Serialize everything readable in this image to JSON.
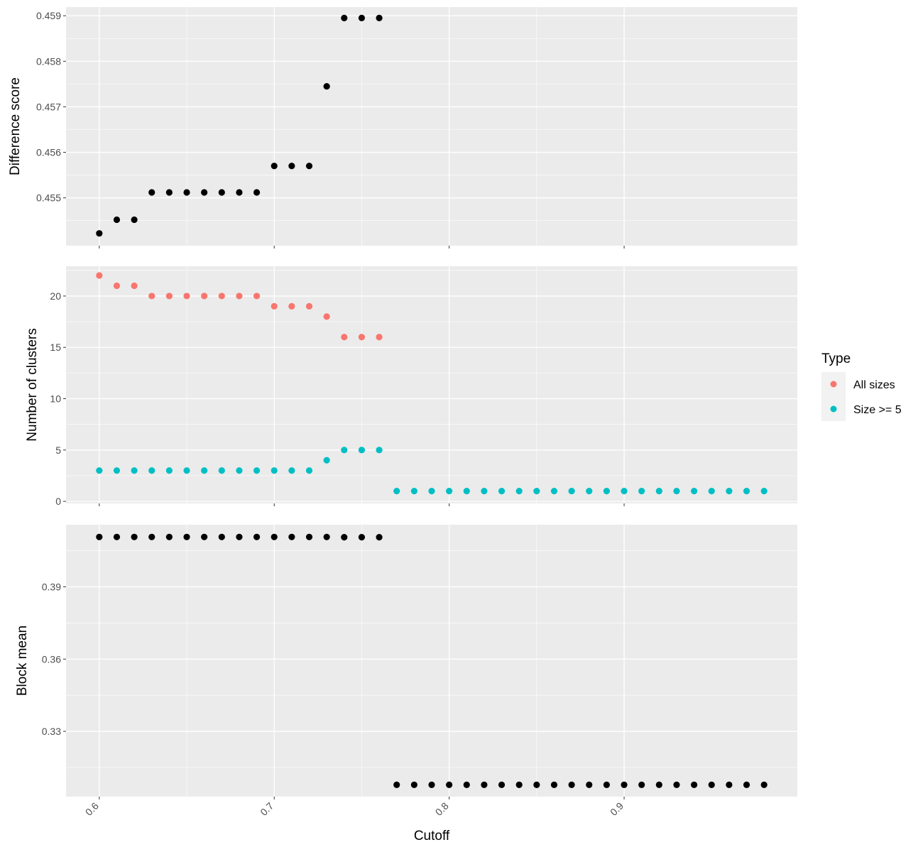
{
  "chart_data": [
    {
      "type": "scatter",
      "ylabel": "Difference score",
      "x": [
        0.6,
        0.61,
        0.62,
        0.63,
        0.64,
        0.65,
        0.66,
        0.67,
        0.68,
        0.69,
        0.7,
        0.71,
        0.72,
        0.73,
        0.74,
        0.75,
        0.76
      ],
      "y": [
        0.45422,
        0.45452,
        0.45452,
        0.45512,
        0.45512,
        0.45512,
        0.45512,
        0.45512,
        0.45512,
        0.45512,
        0.4557,
        0.4557,
        0.4557,
        0.45745,
        0.45895,
        0.45895,
        0.45895
      ],
      "xlim": [
        0.581,
        0.999
      ],
      "ylim": [
        0.45395,
        0.45919
      ],
      "yticks": [
        0.455,
        0.456,
        0.457,
        0.458,
        0.459
      ],
      "ytick_labels": [
        "0.455",
        "0.456",
        "0.457",
        "0.458",
        "0.459"
      ],
      "color": "#000000"
    },
    {
      "type": "scatter",
      "ylabel": "Number of clusters",
      "xlim": [
        0.581,
        0.999
      ],
      "ylim": [
        -0.2,
        22.9
      ],
      "yticks": [
        0,
        5,
        10,
        15,
        20
      ],
      "ytick_labels": [
        "0",
        "5",
        "10",
        "15",
        "20"
      ],
      "series": [
        {
          "name": "All sizes",
          "color": "#F8766D",
          "x": [
            0.6,
            0.61,
            0.62,
            0.63,
            0.64,
            0.65,
            0.66,
            0.67,
            0.68,
            0.69,
            0.7,
            0.71,
            0.72,
            0.73,
            0.74,
            0.75,
            0.76
          ],
          "y": [
            22,
            21,
            21,
            20,
            20,
            20,
            20,
            20,
            20,
            20,
            19,
            19,
            19,
            18,
            16,
            16,
            16
          ]
        },
        {
          "name": "Size >= 5",
          "color": "#00BFC4",
          "x": [
            0.6,
            0.61,
            0.62,
            0.63,
            0.64,
            0.65,
            0.66,
            0.67,
            0.68,
            0.69,
            0.7,
            0.71,
            0.72,
            0.73,
            0.74,
            0.75,
            0.76,
            0.77,
            0.78,
            0.79,
            0.8,
            0.81,
            0.82,
            0.83,
            0.84,
            0.85,
            0.86,
            0.87,
            0.88,
            0.89,
            0.9,
            0.91,
            0.92,
            0.93,
            0.94,
            0.95,
            0.96,
            0.97,
            0.98
          ],
          "y": [
            3,
            3,
            3,
            3,
            3,
            3,
            3,
            3,
            3,
            3,
            3,
            3,
            3,
            4,
            5,
            5,
            5,
            1,
            1,
            1,
            1,
            1,
            1,
            1,
            1,
            1,
            1,
            1,
            1,
            1,
            1,
            1,
            1,
            1,
            1,
            1,
            1,
            1,
            1
          ]
        }
      ]
    },
    {
      "type": "scatter",
      "ylabel": "Block mean",
      "xlabel": "Cutoff",
      "x": [
        0.6,
        0.61,
        0.62,
        0.63,
        0.64,
        0.65,
        0.66,
        0.67,
        0.68,
        0.69,
        0.7,
        0.71,
        0.72,
        0.73,
        0.74,
        0.75,
        0.76,
        0.77,
        0.78,
        0.79,
        0.8,
        0.81,
        0.82,
        0.83,
        0.84,
        0.85,
        0.86,
        0.87,
        0.88,
        0.89,
        0.9,
        0.91,
        0.92,
        0.93,
        0.94,
        0.95,
        0.96,
        0.97,
        0.98
      ],
      "y": [
        0.4107,
        0.4107,
        0.4107,
        0.4107,
        0.4107,
        0.4107,
        0.4107,
        0.4107,
        0.4107,
        0.4107,
        0.4107,
        0.4107,
        0.4107,
        0.4107,
        0.4106,
        0.4106,
        0.4106,
        0.3078,
        0.3078,
        0.3078,
        0.3078,
        0.3078,
        0.3078,
        0.3078,
        0.3078,
        0.3078,
        0.3078,
        0.3078,
        0.3078,
        0.3078,
        0.3078,
        0.3078,
        0.3078,
        0.3078,
        0.3078,
        0.3078,
        0.3078,
        0.3078,
        0.3078
      ],
      "xlim": [
        0.581,
        0.999
      ],
      "ylim": [
        0.3029,
        0.4158
      ],
      "xticks": [
        0.6,
        0.7,
        0.8,
        0.9
      ],
      "xtick_labels": [
        "0.6",
        "0.7",
        "0.8",
        "0.9"
      ],
      "yticks": [
        0.33,
        0.36,
        0.39
      ],
      "ytick_labels": [
        "0.33",
        "0.36",
        "0.39"
      ],
      "color": "#000000"
    }
  ],
  "legend": {
    "title": "Type",
    "items": [
      {
        "label": "All sizes",
        "color": "#F8766D"
      },
      {
        "label": "Size >= 5",
        "color": "#00BFC4"
      }
    ]
  },
  "theme": {
    "panel_bg": "#EBEBEB",
    "grid": "#FFFFFF",
    "tick_color": "#333333"
  }
}
